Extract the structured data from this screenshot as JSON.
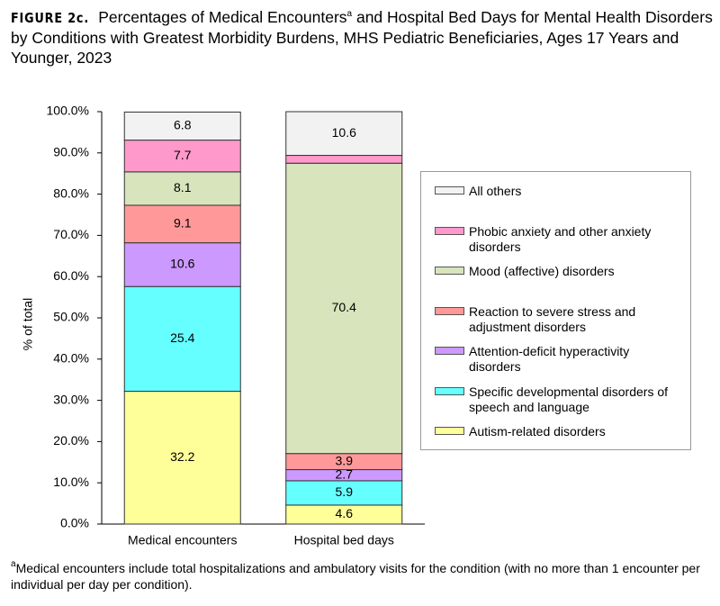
{
  "chart_data": {
    "type": "stacked_bar",
    "figure_label": "FIGURE 2c.",
    "title": "Percentages of Medical Encounters",
    "title_note_mark": "a",
    "title_rest": " and Hospital Bed Days for Mental Health Disorders by Conditions with Greatest Morbidity Burdens, MHS Pediatric Beneficiaries, Ages 17 Years and Younger, 2023",
    "y_label": "% of total",
    "categories": [
      "Medical encounters",
      "Hospital bed days"
    ],
    "series": [
      {
        "name": "Autism-related disorders",
        "color": "#ffff99",
        "values": [
          32.2,
          4.6
        ]
      },
      {
        "name": "Specific developmental disorders of speech and language",
        "color": "#66ffff",
        "values": [
          25.4,
          5.9
        ]
      },
      {
        "name": "Attention-deficit hyperactivity disorders",
        "color": "#cc99ff",
        "values": [
          10.6,
          2.7
        ]
      },
      {
        "name": "Reaction to severe stress and adjustment disorders",
        "color": "#ff9999",
        "values": [
          9.1,
          3.9
        ]
      },
      {
        "name": "Mood (affective) disorders",
        "color": "#d8e4bc",
        "values": [
          8.1,
          70.4
        ]
      },
      {
        "name": "Phobic anxiety and other anxiety disorders",
        "color": "#ff99cc",
        "values": [
          7.7,
          1.9
        ]
      },
      {
        "name": "All others",
        "color": "#f2f2f2",
        "values": [
          6.8,
          10.6
        ]
      }
    ],
    "ylim": [
      0,
      100
    ],
    "yticks": [
      {
        "value": 0,
        "label": "0.0%"
      },
      {
        "value": 10,
        "label": "10.0%"
      },
      {
        "value": 20,
        "label": "20.0%"
      },
      {
        "value": 30,
        "label": "30.0%"
      },
      {
        "value": 40,
        "label": "40.0%"
      },
      {
        "value": 50,
        "label": "50.0%"
      },
      {
        "value": 60,
        "label": "60.0%"
      },
      {
        "value": 70,
        "label": "70.0%"
      },
      {
        "value": 80,
        "label": "80.0%"
      },
      {
        "value": 90,
        "label": "90.0%"
      },
      {
        "value": 100,
        "label": "100.0%"
      }
    ],
    "footnote_mark": "a",
    "footnote": "Medical encounters include total hospitalizations and ambulatory visits for the condition (with no more than 1 encounter per individual per day per condition)."
  }
}
